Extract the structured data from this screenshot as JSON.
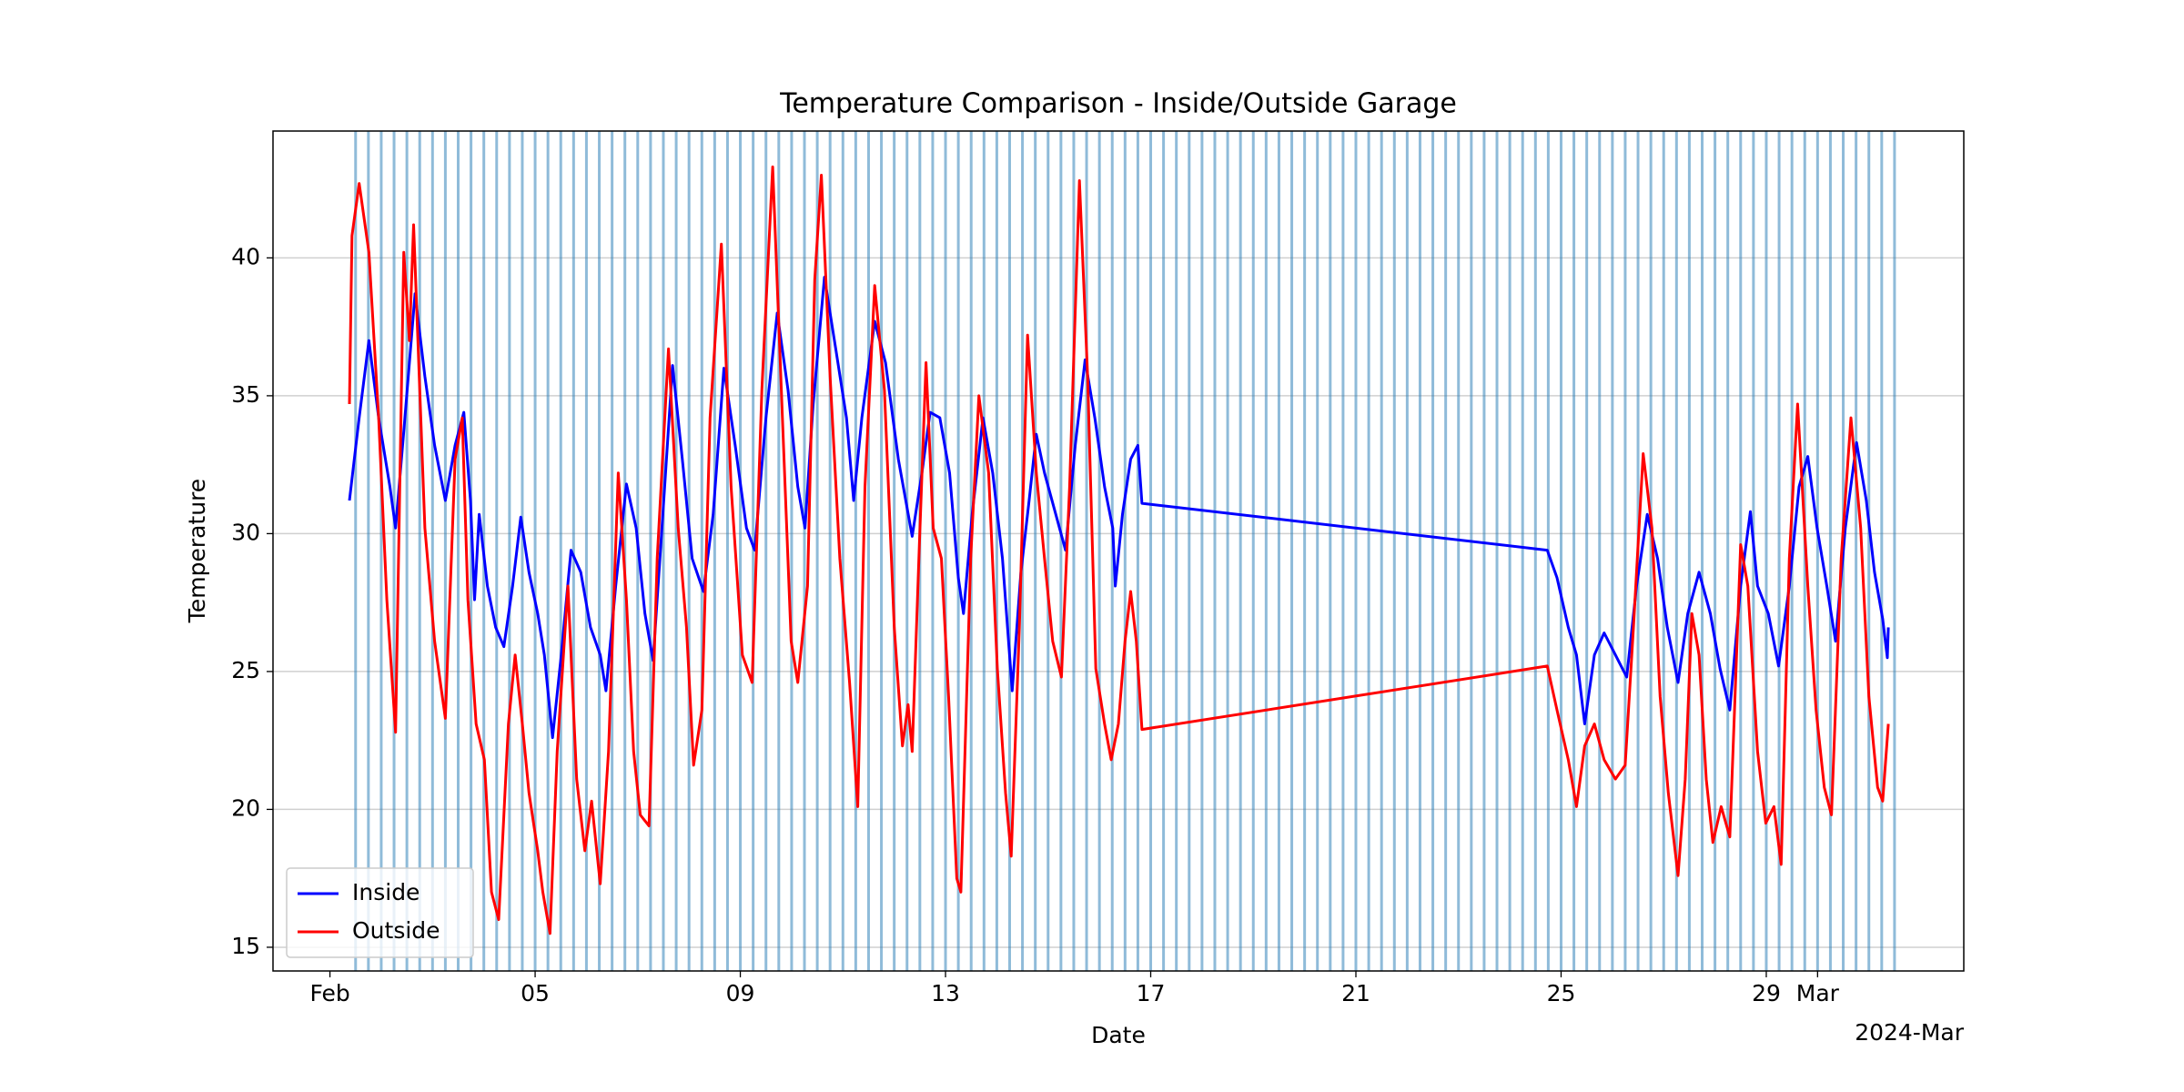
{
  "chart_data": {
    "type": "line",
    "title": "Temperature Comparison - Inside/Outside Garage",
    "xlabel": "Date",
    "ylabel": "Temperature",
    "x_offset_label": "2024-Mar",
    "xlim": [
      -0.11,
      32.85
    ],
    "ylim": [
      14.14,
      44.6
    ],
    "xticks": [
      {
        "value": 1,
        "label": "Feb"
      },
      {
        "value": 5,
        "label": "05"
      },
      {
        "value": 9,
        "label": "09"
      },
      {
        "value": 13,
        "label": "13"
      },
      17,
      21,
      25,
      {
        "value": 29,
        "label": "29"
      },
      {
        "value": 30,
        "label": "Mar"
      }
    ],
    "yticks": [
      15,
      20,
      25,
      30,
      35,
      40
    ],
    "grid": "y",
    "legend_loc": "lower left",
    "vline_color": "#1f77b4",
    "vlines": [
      1.5,
      1.75,
      2,
      2.25,
      2.5,
      2.75,
      3,
      3.25,
      3.5,
      3.75,
      4,
      4.25,
      4.5,
      4.75,
      5,
      5.25,
      5.5,
      5.75,
      6,
      6.25,
      6.5,
      6.75,
      7,
      7.25,
      7.5,
      7.75,
      8,
      8.25,
      8.5,
      8.75,
      9,
      9.25,
      9.5,
      9.75,
      10,
      10.25,
      10.5,
      10.75,
      11,
      11.25,
      11.5,
      11.75,
      12,
      12.25,
      12.5,
      12.75,
      13,
      13.25,
      13.5,
      13.75,
      14,
      14.25,
      14.5,
      14.75,
      15,
      15.25,
      15.5,
      15.75,
      16,
      16.25,
      16.5,
      16.75,
      17,
      17.25,
      17.5,
      17.75,
      18,
      18.25,
      18.5,
      18.75,
      19,
      19.25,
      19.5,
      19.75,
      20,
      20.25,
      20.5,
      20.75,
      21,
      21.25,
      21.5,
      21.75,
      22,
      22.25,
      22.5,
      22.75,
      23,
      23.25,
      23.5,
      23.75,
      24,
      24.25,
      24.5,
      24.75,
      25,
      25.25,
      25.5,
      25.75,
      26,
      26.25,
      26.5,
      26.75,
      27,
      27.25,
      27.5,
      27.75,
      28,
      28.25,
      28.5,
      28.75,
      29,
      29.25,
      29.5,
      29.75,
      30,
      30.25,
      30.5,
      30.75,
      31,
      31.25,
      31.5
    ],
    "series": [
      {
        "name": "Inside",
        "color": "#0000ff",
        "x": [
          1.38,
          1.57,
          1.76,
          1.95,
          2.17,
          2.28,
          2.44,
          2.66,
          2.85,
          3.04,
          3.25,
          3.44,
          3.61,
          3.74,
          3.82,
          3.91,
          4.07,
          4.23,
          4.39,
          4.56,
          4.72,
          4.88,
          5.05,
          5.18,
          5.34,
          5.51,
          5.7,
          5.89,
          6.08,
          6.27,
          6.38,
          6.57,
          6.78,
          6.97,
          7.14,
          7.3,
          7.49,
          7.68,
          7.87,
          8.06,
          8.28,
          8.47,
          8.68,
          8.9,
          9.12,
          9.28,
          9.5,
          9.72,
          9.93,
          10.12,
          10.26,
          10.42,
          10.64,
          10.86,
          11.07,
          11.21,
          11.37,
          11.62,
          11.83,
          12.08,
          12.35,
          12.54,
          12.7,
          12.89,
          13.08,
          13.25,
          13.35,
          13.52,
          13.73,
          13.92,
          14.11,
          14.3,
          14.47,
          14.63,
          14.77,
          14.93,
          15.15,
          15.34,
          15.53,
          15.72,
          15.91,
          16.1,
          16.26,
          16.31,
          16.45,
          16.61,
          16.75,
          16.83,
          24.73,
          24.92,
          25.14,
          25.3,
          25.46,
          25.65,
          25.84,
          26.06,
          26.28,
          26.47,
          26.68,
          26.88,
          27.07,
          27.28,
          27.47,
          27.69,
          27.91,
          28.1,
          28.29,
          28.5,
          28.69,
          28.83,
          29.04,
          29.24,
          29.45,
          29.64,
          29.81,
          29.99,
          30.18,
          30.35,
          30.54,
          30.76,
          30.95,
          31.11,
          31.27,
          31.36,
          31.38
        ],
        "values": [
          31.2,
          34.2,
          37,
          34.2,
          31.7,
          30.2,
          33.7,
          38.7,
          35.7,
          33.2,
          31.2,
          33.2,
          34.4,
          31.2,
          27.6,
          30.7,
          28.1,
          26.6,
          25.9,
          28.1,
          30.6,
          28.6,
          27.1,
          25.6,
          22.6,
          25.6,
          29.4,
          28.6,
          26.6,
          25.6,
          24.3,
          28.1,
          31.8,
          30.2,
          27.1,
          25.4,
          30.7,
          36.1,
          32.7,
          29.1,
          27.9,
          30.7,
          36,
          33.2,
          30.2,
          29.4,
          34.2,
          38,
          35.2,
          31.7,
          30.2,
          34.7,
          39.3,
          36.7,
          34.2,
          31.2,
          34.2,
          37.7,
          36.2,
          32.7,
          29.9,
          32.2,
          34.4,
          34.2,
          32.2,
          28.4,
          27.1,
          30.7,
          34.2,
          32.2,
          29.1,
          24.3,
          28.6,
          31.2,
          33.6,
          32.2,
          30.7,
          29.4,
          33.2,
          36.3,
          34.2,
          31.7,
          30.2,
          28.1,
          30.7,
          32.7,
          33.2,
          31.1,
          29.4,
          28.4,
          26.6,
          25.6,
          23.1,
          25.6,
          26.4,
          25.6,
          24.8,
          28.1,
          30.7,
          29.1,
          26.6,
          24.6,
          27.1,
          28.6,
          27.1,
          25.1,
          23.6,
          28.1,
          30.8,
          28.1,
          27.1,
          25.2,
          28.1,
          31.7,
          32.8,
          30.2,
          28.1,
          26.1,
          30.2,
          33.3,
          31.2,
          28.6,
          26.9,
          25.5,
          26.6
        ]
      },
      {
        "name": "Outside",
        "color": "#ff0000",
        "x": [
          1.38,
          1.43,
          1.57,
          1.76,
          1.95,
          2.11,
          2.28,
          2.44,
          2.55,
          2.63,
          2.85,
          3.04,
          3.25,
          3.44,
          3.58,
          3.69,
          3.85,
          4.01,
          4.15,
          4.29,
          4.48,
          4.61,
          4.75,
          4.88,
          5.05,
          5.15,
          5.29,
          5.43,
          5.64,
          5.81,
          5.97,
          6.1,
          6.27,
          6.43,
          6.62,
          6.78,
          6.92,
          7.05,
          7.22,
          7.38,
          7.6,
          7.79,
          7.95,
          8.09,
          8.25,
          8.41,
          8.63,
          8.82,
          9.04,
          9.23,
          9.42,
          9.63,
          9.82,
          9.99,
          10.12,
          10.31,
          10.45,
          10.58,
          10.75,
          10.94,
          11.13,
          11.29,
          11.43,
          11.62,
          11.81,
          12,
          12.16,
          12.27,
          12.35,
          12.49,
          12.62,
          12.76,
          12.92,
          13.06,
          13.22,
          13.3,
          13.49,
          13.65,
          13.84,
          14.01,
          14.17,
          14.28,
          14.44,
          14.6,
          14.77,
          14.93,
          15.09,
          15.26,
          15.42,
          15.61,
          15.77,
          15.93,
          16.1,
          16.23,
          16.37,
          16.5,
          16.61,
          16.72,
          16.83,
          24.73,
          24.92,
          25.14,
          25.3,
          25.46,
          25.65,
          25.84,
          26.06,
          26.25,
          26.41,
          26.6,
          26.77,
          26.93,
          27.09,
          27.28,
          27.42,
          27.55,
          27.69,
          27.83,
          27.96,
          28.12,
          28.29,
          28.5,
          28.64,
          28.83,
          28.99,
          29.15,
          29.29,
          29.45,
          29.61,
          29.81,
          29.97,
          30.13,
          30.27,
          30.46,
          30.65,
          30.84,
          31,
          31.17,
          31.27,
          31.38
        ],
        "values": [
          34.7,
          40.8,
          42.7,
          40.2,
          34.2,
          27.6,
          22.8,
          40.2,
          37,
          41.2,
          30.2,
          26.1,
          23.3,
          32.7,
          34.2,
          27.6,
          23.1,
          21.8,
          17,
          16,
          23.1,
          25.6,
          23.1,
          20.6,
          18.5,
          17,
          15.5,
          22.1,
          28.1,
          21.1,
          18.5,
          20.3,
          17.3,
          22.1,
          32.2,
          27.6,
          22.1,
          19.8,
          19.4,
          29.1,
          36.7,
          30.2,
          26.6,
          21.6,
          23.6,
          34.2,
          40.5,
          31.7,
          25.6,
          24.6,
          35.2,
          43.3,
          34.2,
          26.1,
          24.6,
          28.1,
          39.2,
          43,
          35.7,
          29.1,
          24.6,
          20.1,
          31.7,
          39,
          35.2,
          26.6,
          22.3,
          23.8,
          22.1,
          29.6,
          36.2,
          30.2,
          29.1,
          24.1,
          17.5,
          17,
          29.1,
          35,
          32.2,
          25.1,
          20.6,
          18.3,
          26.6,
          37.2,
          32.2,
          29.1,
          26.1,
          24.8,
          31.7,
          42.8,
          35.7,
          25.1,
          23.1,
          21.8,
          23.1,
          26.1,
          27.9,
          26.1,
          22.9,
          25.2,
          23.6,
          21.8,
          20.1,
          22.3,
          23.1,
          21.8,
          21.1,
          21.6,
          26.6,
          32.9,
          30.2,
          24.1,
          20.6,
          17.6,
          21.1,
          27.1,
          25.6,
          21.1,
          18.8,
          20.1,
          19,
          29.6,
          28.1,
          22.1,
          19.5,
          20.1,
          18,
          29.1,
          34.7,
          28.1,
          23.6,
          20.8,
          19.8,
          29.1,
          34.2,
          30.2,
          24.1,
          20.8,
          20.3,
          23.1
        ]
      }
    ]
  }
}
